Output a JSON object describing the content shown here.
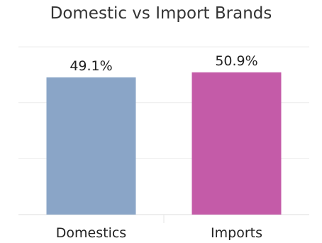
{
  "chart_data": {
    "type": "bar",
    "title": "Domestic vs Import Brands",
    "categories": [
      "Domestics",
      "Imports"
    ],
    "values": [
      49.1,
      50.9
    ],
    "data_labels": [
      "49.1%",
      "50.9%"
    ],
    "colors": [
      "#8aa5c7",
      "#c45ba8"
    ],
    "ylim": [
      0,
      60
    ],
    "grid": true,
    "legend": "none"
  }
}
